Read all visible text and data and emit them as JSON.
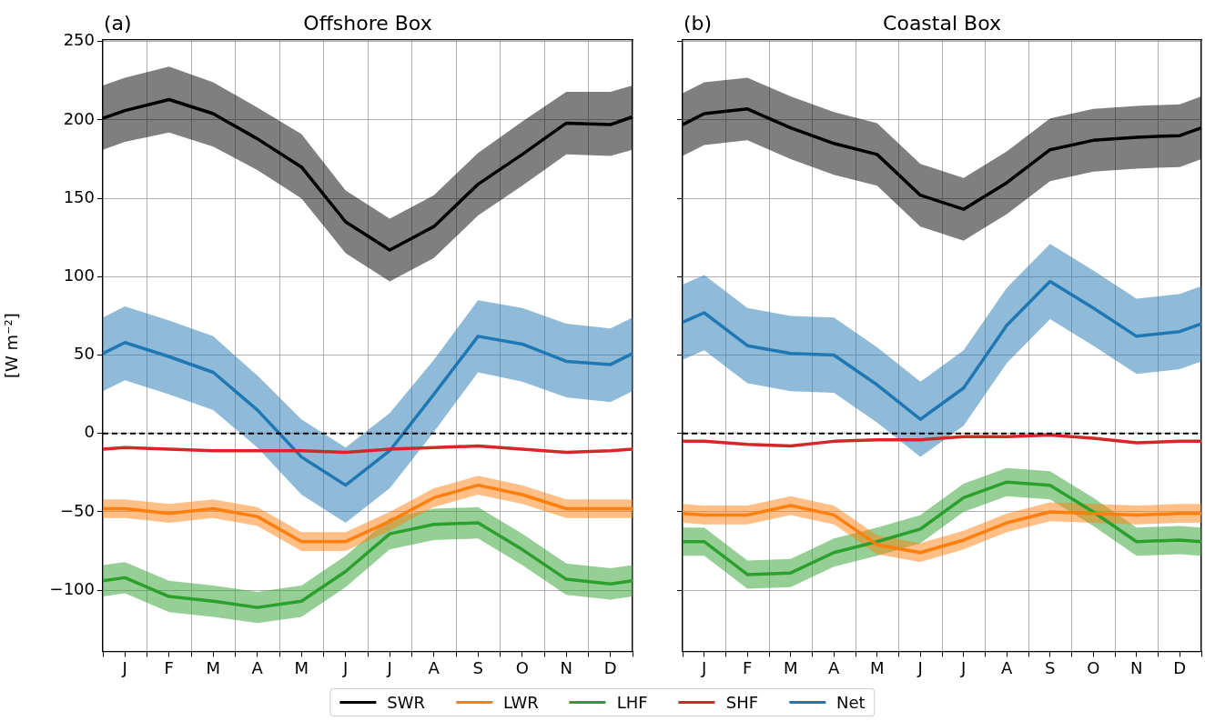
{
  "chart_data": [
    {
      "type": "line",
      "title": "Offshore Box",
      "annotations": [
        "(a)"
      ],
      "ylabel": "[W m⁻²]",
      "categories": [
        null,
        "J",
        null,
        "F",
        null,
        "M",
        null,
        "A",
        null,
        "M",
        null,
        "J",
        null,
        "J",
        null,
        "A",
        null,
        "S",
        null,
        "O",
        null,
        "N",
        null,
        "D",
        null
      ],
      "ylim": [
        -139,
        251
      ],
      "yticks": [
        -100,
        -50,
        0,
        50,
        100,
        150,
        200,
        250
      ],
      "grid": true,
      "legend": "bottom",
      "ref_lines": [
        {
          "axis": "y",
          "value": 0,
          "color": "#000000",
          "line_style": "dashed"
        }
      ],
      "series": [
        {
          "name": "SWR",
          "color": "#000000",
          "values": [
            201,
            206,
            null,
            213,
            null,
            204,
            null,
            188,
            null,
            170,
            null,
            135,
            null,
            117,
            null,
            132,
            null,
            159,
            null,
            178,
            null,
            198,
            null,
            197,
            202
          ],
          "upper": [
            222,
            227,
            null,
            234,
            null,
            224,
            null,
            208,
            null,
            191,
            null,
            155,
            null,
            137,
            null,
            152,
            null,
            179,
            null,
            199,
            null,
            218,
            null,
            218,
            222
          ],
          "lower": [
            181,
            186,
            null,
            192,
            null,
            183,
            null,
            168,
            null,
            150,
            null,
            115,
            null,
            97,
            null,
            112,
            null,
            139,
            null,
            158,
            null,
            178,
            null,
            177,
            181
          ]
        },
        {
          "name": "LWR",
          "color": "#ff7f0e",
          "values": [
            -48,
            -48,
            null,
            -51,
            null,
            -48,
            null,
            -53,
            null,
            -69,
            null,
            -69,
            null,
            -56,
            null,
            -41,
            null,
            -33,
            null,
            -39,
            null,
            -48,
            null,
            -48,
            -48
          ],
          "upper": [
            -42,
            -42,
            null,
            -45,
            null,
            -42,
            null,
            -47,
            null,
            -63,
            null,
            -63,
            null,
            -50,
            null,
            -35,
            null,
            -27,
            null,
            -33,
            null,
            -42,
            null,
            -42,
            -42
          ],
          "lower": [
            -54,
            -54,
            null,
            -57,
            null,
            -54,
            null,
            -59,
            null,
            -75,
            null,
            -75,
            null,
            -62,
            null,
            -47,
            null,
            -39,
            null,
            -45,
            null,
            -54,
            null,
            -54,
            -54
          ]
        },
        {
          "name": "LHF",
          "color": "#2ca02c",
          "values": [
            -94,
            -92,
            null,
            -104,
            null,
            -107,
            null,
            -111,
            null,
            -107,
            null,
            -88,
            null,
            -64,
            null,
            -58,
            null,
            -57,
            null,
            -74,
            null,
            -93,
            null,
            -96,
            -94
          ],
          "upper": [
            -84,
            -82,
            null,
            -94,
            null,
            -97,
            null,
            -101,
            null,
            -97,
            null,
            -78,
            null,
            -54,
            null,
            -48,
            null,
            -47,
            null,
            -64,
            null,
            -83,
            null,
            -86,
            -84
          ],
          "lower": [
            -104,
            -102,
            null,
            -114,
            null,
            -117,
            null,
            -121,
            null,
            -117,
            null,
            -98,
            null,
            -74,
            null,
            -68,
            null,
            -67,
            null,
            -84,
            null,
            -103,
            null,
            -106,
            -104
          ]
        },
        {
          "name": "SHF",
          "color": "#d62728",
          "values": [
            -10,
            -9,
            null,
            -10,
            null,
            -11,
            null,
            -11,
            null,
            -11,
            null,
            -12,
            null,
            -10,
            null,
            -9,
            null,
            -8,
            null,
            -10,
            null,
            -12,
            null,
            -11,
            -10
          ]
        },
        {
          "name": "Net",
          "color": "#1f77b4",
          "values": [
            51,
            58,
            null,
            49,
            null,
            39,
            null,
            15,
            null,
            -15,
            null,
            -33,
            null,
            -11,
            null,
            25,
            null,
            62,
            null,
            57,
            null,
            46,
            null,
            44,
            51
          ],
          "upper": [
            74,
            81,
            null,
            72,
            null,
            62,
            null,
            37,
            null,
            9,
            null,
            -9,
            null,
            13,
            null,
            47,
            null,
            85,
            null,
            80,
            null,
            70,
            null,
            67,
            74
          ],
          "lower": [
            27,
            34,
            null,
            25,
            null,
            15,
            null,
            -9,
            null,
            -39,
            null,
            -57,
            null,
            -35,
            null,
            1,
            null,
            39,
            null,
            33,
            null,
            23,
            null,
            20,
            27
          ]
        }
      ]
    },
    {
      "type": "line",
      "title": "Coastal Box",
      "annotations": [
        "(b)"
      ],
      "tick_labels": "x",
      "categories": [
        null,
        "J",
        null,
        "F",
        null,
        "M",
        null,
        "A",
        null,
        "M",
        null,
        "J",
        null,
        "J",
        null,
        "A",
        null,
        "S",
        null,
        "O",
        null,
        "N",
        null,
        "D",
        null
      ],
      "ylim": [
        -139,
        251
      ],
      "yticks": [
        -100,
        -50,
        0,
        50,
        100,
        150,
        200,
        250
      ],
      "grid": true,
      "ref_lines": [
        {
          "axis": "y",
          "value": 0,
          "color": "#000000",
          "line_style": "dashed"
        }
      ],
      "series": [
        {
          "color": "#000000",
          "values": [
            197,
            204,
            null,
            207,
            null,
            195,
            null,
            185,
            null,
            178,
            null,
            152,
            null,
            143,
            null,
            160,
            null,
            181,
            null,
            187,
            null,
            189,
            null,
            190,
            195
          ],
          "upper": [
            217,
            224,
            null,
            227,
            null,
            215,
            null,
            205,
            null,
            198,
            null,
            172,
            null,
            163,
            null,
            180,
            null,
            201,
            null,
            207,
            null,
            209,
            null,
            210,
            215
          ],
          "lower": [
            177,
            184,
            null,
            187,
            null,
            175,
            null,
            165,
            null,
            158,
            null,
            132,
            null,
            123,
            null,
            140,
            null,
            161,
            null,
            167,
            null,
            169,
            null,
            170,
            175
          ]
        },
        {
          "color": "#ff7f0e",
          "values": [
            -51,
            -52,
            null,
            -52,
            null,
            -46,
            null,
            -52,
            null,
            -71,
            null,
            -76,
            null,
            -68,
            null,
            -57,
            null,
            -50,
            null,
            -51,
            null,
            -52,
            null,
            -51,
            -51
          ],
          "upper": [
            -45,
            -46,
            null,
            -46,
            null,
            -40,
            null,
            -46,
            null,
            -65,
            null,
            -70,
            null,
            -62,
            null,
            -51,
            null,
            -44,
            null,
            -45,
            null,
            -46,
            null,
            -45,
            -45
          ],
          "lower": [
            -57,
            -58,
            null,
            -58,
            null,
            -52,
            null,
            -58,
            null,
            -77,
            null,
            -82,
            null,
            -74,
            null,
            -63,
            null,
            -56,
            null,
            -57,
            null,
            -58,
            null,
            -57,
            -57
          ]
        },
        {
          "color": "#2ca02c",
          "values": [
            -69,
            -69,
            null,
            -90,
            null,
            -89,
            null,
            -76,
            null,
            -69,
            null,
            -61,
            null,
            -41,
            null,
            -31,
            null,
            -33,
            null,
            -50,
            null,
            -69,
            null,
            -68,
            -69
          ],
          "upper": [
            -60,
            -60,
            null,
            -81,
            null,
            -80,
            null,
            -67,
            null,
            -60,
            null,
            -52,
            null,
            -32,
            null,
            -22,
            null,
            -24,
            null,
            -41,
            null,
            -60,
            null,
            -59,
            -60
          ],
          "lower": [
            -78,
            -78,
            null,
            -99,
            null,
            -98,
            null,
            -85,
            null,
            -78,
            null,
            -70,
            null,
            -50,
            null,
            -40,
            null,
            -42,
            null,
            -59,
            null,
            -78,
            null,
            -77,
            -78
          ]
        },
        {
          "color": "#d62728",
          "values": [
            -5,
            -5,
            null,
            -7,
            null,
            -8,
            null,
            -5,
            null,
            -4,
            null,
            -4,
            null,
            -2,
            null,
            -2,
            null,
            -1,
            null,
            -3,
            null,
            -6,
            null,
            -5,
            -5
          ]
        },
        {
          "color": "#1f77b4",
          "values": [
            71,
            77,
            null,
            56,
            null,
            51,
            null,
            50,
            null,
            31,
            null,
            9,
            null,
            29,
            null,
            69,
            null,
            97,
            null,
            80,
            null,
            62,
            null,
            65,
            70
          ],
          "upper": [
            95,
            101,
            null,
            80,
            null,
            75,
            null,
            74,
            null,
            55,
            null,
            33,
            null,
            53,
            null,
            93,
            null,
            121,
            null,
            104,
            null,
            86,
            null,
            89,
            94
          ],
          "lower": [
            47,
            53,
            null,
            32,
            null,
            27,
            null,
            26,
            null,
            7,
            null,
            -15,
            null,
            5,
            null,
            45,
            null,
            73,
            null,
            56,
            null,
            38,
            null,
            41,
            46
          ]
        }
      ]
    }
  ]
}
